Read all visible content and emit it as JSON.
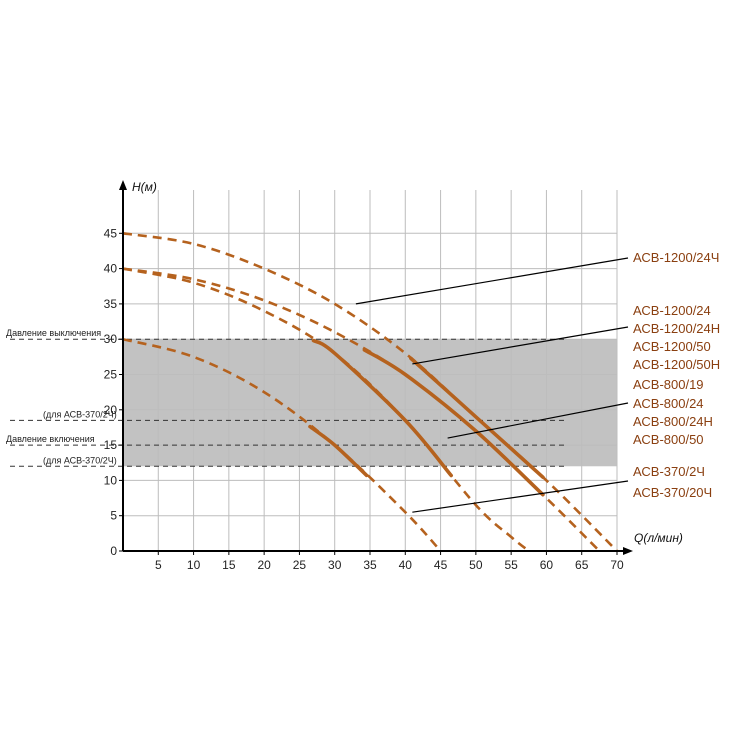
{
  "chart_data": {
    "type": "line",
    "title": "",
    "xlabel": "Q(л/мин)",
    "ylabel": "H(м)",
    "xlim": [
      0,
      70
    ],
    "ylim": [
      0,
      50
    ],
    "x_ticks": [
      5,
      10,
      15,
      20,
      25,
      30,
      35,
      40,
      45,
      50,
      55,
      60,
      65,
      70
    ],
    "y_ticks": [
      0,
      5,
      10,
      15,
      20,
      25,
      30,
      35,
      40,
      45
    ],
    "grid": true,
    "pressure_band": [
      12,
      30
    ],
    "reference_lines": [
      {
        "y": 30,
        "label": "Давление выключения"
      },
      {
        "y": 18.5,
        "label": "(для АСВ-370/2Ч)"
      },
      {
        "y": 15,
        "label": "Давление включения"
      },
      {
        "y": 12,
        "label": "(для АСВ-370/2Ч)"
      }
    ],
    "series": [
      {
        "name": "АСВ-1200/24Ч",
        "x": [
          0,
          10,
          20,
          30,
          40,
          50,
          60,
          70
        ],
        "y": [
          45,
          43.5,
          40,
          35,
          28,
          19,
          10,
          0
        ],
        "solid_range": [
          40.8,
          59.5
        ]
      },
      {
        "name": "АСВ-1200/24 АСВ-1200/24Н АСВ-1200/50 АСВ-1200/50Н",
        "x": [
          0,
          10,
          20,
          30,
          40,
          50,
          60,
          67.5
        ],
        "y": [
          40,
          38.5,
          35.5,
          31,
          25,
          17,
          7.5,
          0
        ],
        "solid_range": [
          34.2,
          59.5
        ]
      },
      {
        "name": "АСВ-800/19 АСВ-800/24 АСВ-800/24Н АСВ-800/50",
        "x": [
          0,
          10,
          20,
          30,
          40,
          50,
          55,
          57.5
        ],
        "y": [
          40,
          38,
          34,
          28,
          18.5,
          6.5,
          2,
          0
        ],
        "solid_range": [
          27,
          46.5
        ]
      },
      {
        "name": "АСВ-370/2Ч АСВ-370/20Ч",
        "x": [
          0,
          10,
          20,
          30,
          40,
          45
        ],
        "y": [
          30,
          27.5,
          22.5,
          15,
          5.5,
          0
        ],
        "solid_range": [
          26.5,
          34.5
        ]
      }
    ],
    "annotations": [
      {
        "text": "АСВ-1200/24Ч",
        "series": 0,
        "at": [
          33,
          35
        ]
      },
      {
        "text": "АСВ-1200/24",
        "series": 1,
        "at": [
          41,
          26.5
        ]
      },
      {
        "text": "АСВ-1200/24Н",
        "series": 1
      },
      {
        "text": "АСВ-1200/50",
        "series": 1
      },
      {
        "text": "АСВ-1200/50Н",
        "series": 1
      },
      {
        "text": "АСВ-800/19",
        "series": 2,
        "at": [
          46,
          16
        ]
      },
      {
        "text": "АСВ-800/24",
        "series": 2
      },
      {
        "text": "АСВ-800/24Н",
        "series": 2
      },
      {
        "text": "АСВ-800/50",
        "series": 2
      },
      {
        "text": "АСВ-370/2Ч",
        "series": 3,
        "at": [
          41,
          5.5
        ]
      },
      {
        "text": "АСВ-370/20Ч",
        "series": 3
      }
    ],
    "colors": {
      "curve": "#b5621e",
      "band": "#c2c2c2",
      "grid": "#bdbdbd",
      "axis": "#000000",
      "label": "#8a3f10"
    }
  }
}
